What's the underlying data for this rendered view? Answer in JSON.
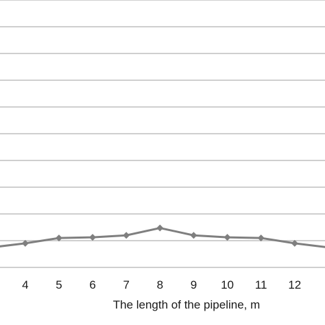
{
  "chart_data": {
    "type": "line",
    "title": "",
    "xlabel": "The length of the pipeline,  m",
    "ylabel": "",
    "x": [
      3,
      4,
      5,
      6,
      7,
      8,
      9,
      10,
      11,
      12,
      13
    ],
    "x_tick_labels": [
      "4",
      "5",
      "6",
      "7",
      "8",
      "9",
      "10",
      "11",
      "12"
    ],
    "x_tick_values": [
      4,
      5,
      6,
      7,
      8,
      9,
      10,
      11,
      12
    ],
    "series": [
      {
        "values": [
          1.5,
          1.8,
          2.2,
          2.25,
          2.4,
          2.95,
          2.4,
          2.25,
          2.2,
          1.8,
          1.5
        ],
        "color": "#7f7f7f"
      }
    ],
    "gridlines": [
      0,
      2,
      4,
      6,
      8,
      10,
      12,
      14,
      16,
      18,
      20
    ],
    "ylim": [
      0,
      20
    ],
    "xlim": [
      3.25,
      12.9
    ],
    "grid": true,
    "legend": "none",
    "marker": "diamond"
  }
}
